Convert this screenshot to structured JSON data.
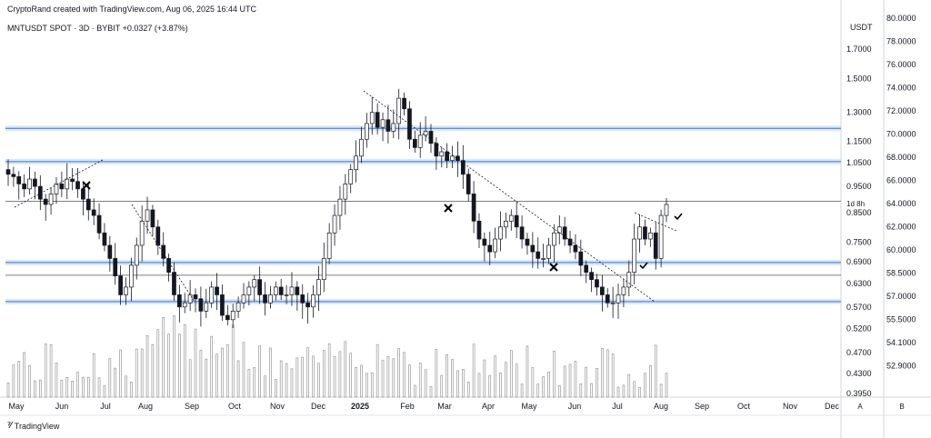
{
  "header": {
    "credit": "CryptoRand created with TradingView.com, Aug 06, 2025 16:44 UTC"
  },
  "symbol": {
    "name": "MNTUSDT SPOT",
    "sep1": "·",
    "timeframe": "3D",
    "sep2": "·",
    "exchange": "BYBIT",
    "change": "+0.0327 (+3.87%)"
  },
  "axis": {
    "currency": "USDT",
    "price_ticks": [
      "1.7000",
      "1.5000",
      "1.3000",
      "1.1500",
      "1.0500",
      "0.9500",
      "0.8500",
      "0.7500",
      "0.6900",
      "0.6300",
      "0.5700",
      "0.5200",
      "0.4700",
      "0.4300",
      "0.3950"
    ],
    "alt_ticks": [
      "80.0000",
      "78.0000",
      "76.0000",
      "74.0000",
      "72.0000",
      "70.0000",
      "68.0000",
      "66.0000",
      "64.0000",
      "62.0000",
      "60.0000",
      "58.5000",
      "57.0000",
      "55.5000",
      "54.1000",
      "52.9000"
    ],
    "countdown": "1d 8h",
    "bottom_buttons": [
      "A",
      "B"
    ]
  },
  "chart_data": {
    "type": "candlestick",
    "symbol": "MNTUSDT",
    "interval": "3D",
    "x_ticks": [
      "May",
      "Jun",
      "Jul",
      "Aug",
      "Sep",
      "Oct",
      "Nov",
      "Dec",
      "2025",
      "Feb",
      "Mar",
      "Apr",
      "May",
      "Jun",
      "Jul",
      "Aug",
      "Sep",
      "Oct",
      "Nov",
      "Dec"
    ],
    "horizontal_zones": [
      1.215,
      1.055,
      0.688,
      0.583
    ],
    "horizontal_lines": [
      0.892,
      0.652
    ],
    "close_values": [
      1.0,
      0.99,
      0.96,
      0.94,
      0.98,
      0.95,
      0.9,
      0.88,
      0.92,
      0.96,
      0.94,
      0.98,
      0.97,
      0.94,
      0.9,
      0.86,
      0.84,
      0.78,
      0.74,
      0.7,
      0.65,
      0.6,
      0.62,
      0.68,
      0.74,
      0.82,
      0.86,
      0.8,
      0.74,
      0.7,
      0.66,
      0.6,
      0.57,
      0.58,
      0.6,
      0.59,
      0.56,
      0.58,
      0.62,
      0.6,
      0.55,
      0.54,
      0.56,
      0.58,
      0.6,
      0.62,
      0.64,
      0.6,
      0.58,
      0.6,
      0.62,
      0.6,
      0.6,
      0.62,
      0.6,
      0.58,
      0.57,
      0.6,
      0.64,
      0.7,
      0.78,
      0.84,
      0.9,
      0.96,
      1.02,
      1.08,
      1.16,
      1.24,
      1.3,
      1.22,
      1.26,
      1.2,
      1.24,
      1.38,
      1.32,
      1.16,
      1.12,
      1.18,
      1.2,
      1.14,
      1.08,
      1.1,
      1.06,
      1.08,
      1.06,
      1.0,
      0.92,
      0.82,
      0.76,
      0.74,
      0.72,
      0.76,
      0.8,
      0.82,
      0.84,
      0.8,
      0.76,
      0.74,
      0.72,
      0.7,
      0.7,
      0.74,
      0.78,
      0.8,
      0.76,
      0.74,
      0.72,
      0.68,
      0.66,
      0.64,
      0.62,
      0.6,
      0.58,
      0.58,
      0.6,
      0.62,
      0.66,
      0.76,
      0.8,
      0.76,
      0.78,
      0.7,
      0.84,
      0.88
    ],
    "volume_note": "volume histogram",
    "annotations": {
      "crosses": 3,
      "checks": 2
    }
  },
  "branding": {
    "logo_text": "TradingView"
  }
}
